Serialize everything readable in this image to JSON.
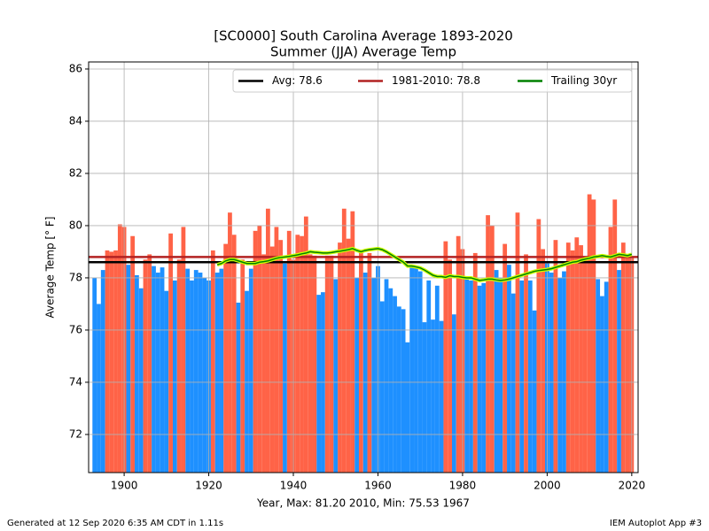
{
  "chart_data": {
    "type": "bar",
    "title": "[SC0000] South Carolina Average 1893-2020",
    "subtitle": "Summer (JJA) Average Temp",
    "x_label": "Year, Max: 81.20 2010, Min: 75.53 1967",
    "y_label": "Average Temp [° F]",
    "x": [
      1893,
      1894,
      1895,
      1896,
      1897,
      1898,
      1899,
      1900,
      1901,
      1902,
      1903,
      1904,
      1905,
      1906,
      1907,
      1908,
      1909,
      1910,
      1911,
      1912,
      1913,
      1914,
      1915,
      1916,
      1917,
      1918,
      1919,
      1920,
      1921,
      1922,
      1923,
      1924,
      1925,
      1926,
      1927,
      1928,
      1929,
      1930,
      1931,
      1932,
      1933,
      1934,
      1935,
      1936,
      1937,
      1938,
      1939,
      1940,
      1941,
      1942,
      1943,
      1944,
      1945,
      1946,
      1947,
      1948,
      1949,
      1950,
      1951,
      1952,
      1953,
      1954,
      1955,
      1956,
      1957,
      1958,
      1959,
      1960,
      1961,
      1962,
      1963,
      1964,
      1965,
      1966,
      1967,
      1968,
      1969,
      1970,
      1971,
      1972,
      1973,
      1974,
      1975,
      1976,
      1977,
      1978,
      1979,
      1980,
      1981,
      1982,
      1983,
      1984,
      1985,
      1986,
      1987,
      1988,
      1989,
      1990,
      1991,
      1992,
      1993,
      1994,
      1995,
      1996,
      1997,
      1998,
      1999,
      2000,
      2001,
      2002,
      2003,
      2004,
      2005,
      2006,
      2007,
      2008,
      2009,
      2010,
      2011,
      2012,
      2013,
      2014,
      2015,
      2016,
      2017,
      2018,
      2019,
      2020
    ],
    "values": [
      78.0,
      77.0,
      78.3,
      79.05,
      79.0,
      79.05,
      80.05,
      79.95,
      78.5,
      79.6,
      78.1,
      77.6,
      78.7,
      78.9,
      78.45,
      78.2,
      78.4,
      77.5,
      79.7,
      77.9,
      78.7,
      79.95,
      78.35,
      77.9,
      78.3,
      78.2,
      78.0,
      77.9,
      79.05,
      78.2,
      78.35,
      79.3,
      80.5,
      79.65,
      77.05,
      78.7,
      77.5,
      78.35,
      79.8,
      80.0,
      78.9,
      80.65,
      79.2,
      79.95,
      79.45,
      78.55,
      79.8,
      78.7,
      79.65,
      79.6,
      80.35,
      78.9,
      78.85,
      77.35,
      77.45,
      78.85,
      78.85,
      77.95,
      79.35,
      80.65,
      79.5,
      80.55,
      78.0,
      79.0,
      78.2,
      78.95,
      78.0,
      78.45,
      77.1,
      77.95,
      77.6,
      77.3,
      76.9,
      76.8,
      75.53,
      78.4,
      78.4,
      78.25,
      76.3,
      77.9,
      76.4,
      77.7,
      76.35,
      79.4,
      78.7,
      76.6,
      79.6,
      79.1,
      78.0,
      77.9,
      78.95,
      77.7,
      77.8,
      80.4,
      80.0,
      78.3,
      78.0,
      79.3,
      78.5,
      77.4,
      80.5,
      77.9,
      78.9,
      77.9,
      76.75,
      80.25,
      79.1,
      78.55,
      78.2,
      79.45,
      78.0,
      78.25,
      79.35,
      79.05,
      79.55,
      79.25,
      78.8,
      81.2,
      81.0,
      77.95,
      77.3,
      77.85,
      79.95,
      81.0,
      78.3,
      79.35,
      78.9,
      78.8
    ],
    "colors": {
      "above": "#ff6347",
      "below": "#1e90ff"
    },
    "reference_lines": [
      {
        "name": "Avg: 78.6",
        "value": 78.6,
        "color": "#000000"
      },
      {
        "name": "1981-2010: 78.8",
        "value": 78.8,
        "color": "#b22222"
      }
    ],
    "series": [
      {
        "name": "Trailing 30yr",
        "color": "#008000",
        "values": [
          null,
          null,
          null,
          null,
          null,
          null,
          null,
          null,
          null,
          null,
          null,
          null,
          null,
          null,
          null,
          null,
          null,
          null,
          null,
          null,
          null,
          null,
          null,
          null,
          null,
          null,
          null,
          null,
          null,
          78.5,
          78.55,
          78.65,
          78.7,
          78.7,
          78.65,
          78.6,
          78.55,
          78.55,
          78.55,
          78.6,
          78.62,
          78.65,
          78.7,
          78.75,
          78.78,
          78.8,
          78.82,
          78.85,
          78.88,
          78.92,
          78.95,
          79.0,
          78.98,
          78.97,
          78.95,
          78.95,
          78.97,
          79.0,
          79.02,
          79.05,
          79.08,
          79.12,
          79.05,
          79.0,
          79.05,
          79.08,
          79.1,
          79.12,
          79.08,
          79.0,
          78.9,
          78.8,
          78.7,
          78.6,
          78.45,
          78.45,
          78.42,
          78.38,
          78.3,
          78.2,
          78.1,
          78.05,
          78.05,
          78.02,
          78.08,
          78.05,
          78.05,
          78.02,
          78.0,
          78.0,
          77.95,
          77.9,
          77.92,
          77.95,
          77.95,
          77.92,
          77.9,
          77.92,
          77.95,
          78.0,
          78.05,
          78.1,
          78.15,
          78.2,
          78.25,
          78.28,
          78.3,
          78.32,
          78.35,
          78.4,
          78.45,
          78.5,
          78.55,
          78.6,
          78.62,
          78.68,
          78.72,
          78.75,
          78.8,
          78.82,
          78.85,
          78.82,
          78.8,
          78.85,
          78.9,
          78.88,
          78.85,
          78.9
        ]
      }
    ],
    "xlim": [
      1891.6,
      2021.5
    ],
    "ylim": [
      70.54,
      86.27
    ],
    "xticks": [
      1900,
      1920,
      1940,
      1960,
      1980,
      2000,
      2020
    ],
    "yticks": [
      72,
      74,
      76,
      78,
      80,
      82,
      84,
      86
    ],
    "grid": true,
    "legend": "upper right"
  },
  "footer": {
    "left": "Generated at 12 Sep 2020 6:35 AM CDT in 1.11s",
    "right": "IEM Autoplot App #3"
  }
}
